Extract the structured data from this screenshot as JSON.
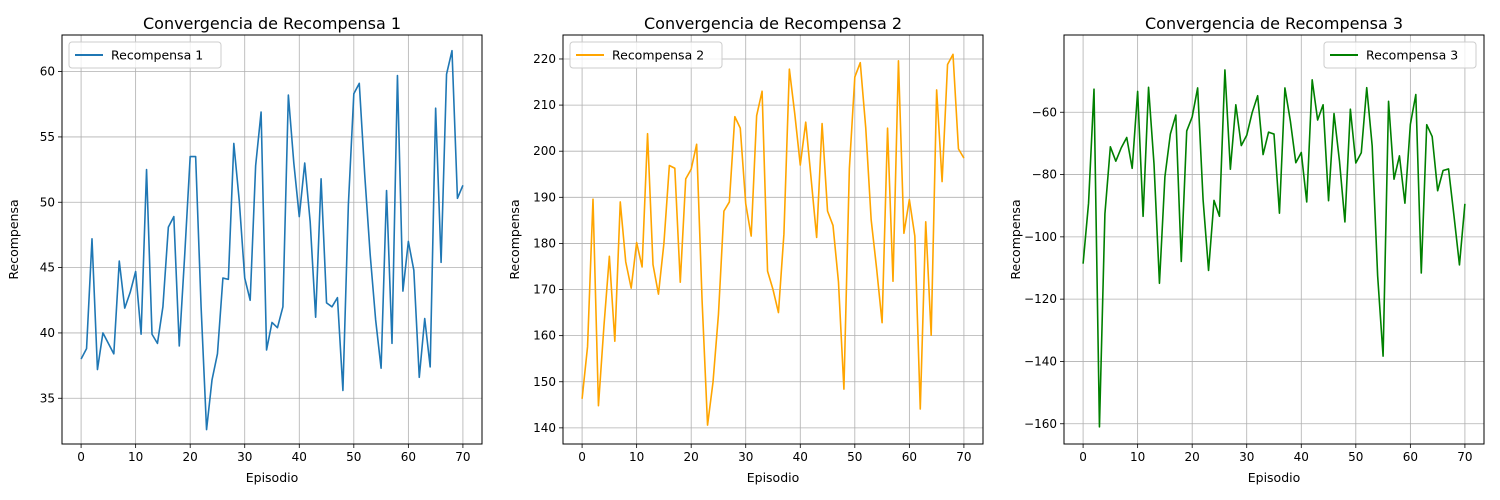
{
  "chart_data": [
    {
      "type": "line",
      "title": "Convergencia de Recompensa 1",
      "xlabel": "Episodio",
      "ylabel": "Recompensa",
      "xlim": [
        -3.5,
        73.5
      ],
      "ylim": [
        31.5,
        62.8
      ],
      "xticks": [
        0,
        10,
        20,
        30,
        40,
        50,
        60,
        70
      ],
      "yticks": [
        35,
        40,
        45,
        50,
        55,
        60
      ],
      "grid": true,
      "legend_position": "upper-left",
      "series": [
        {
          "name": "Recompensa 1",
          "color": "#1f77b4",
          "x": [
            0,
            1,
            2,
            3,
            4,
            5,
            6,
            7,
            8,
            9,
            10,
            11,
            12,
            13,
            14,
            15,
            16,
            17,
            18,
            19,
            20,
            21,
            22,
            23,
            24,
            25,
            26,
            27,
            28,
            29,
            30,
            31,
            32,
            33,
            34,
            35,
            36,
            37,
            38,
            39,
            40,
            41,
            42,
            43,
            44,
            45,
            46,
            47,
            48,
            49,
            50,
            51,
            52,
            53,
            54,
            55,
            56,
            57,
            58,
            59,
            60,
            61,
            62,
            63,
            64,
            65,
            66,
            67,
            68,
            69,
            70
          ],
          "values": [
            38.0,
            38.8,
            47.2,
            37.2,
            40.0,
            39.2,
            38.4,
            45.5,
            41.9,
            43.1,
            44.7,
            39.9,
            52.5,
            39.9,
            39.2,
            42.0,
            48.1,
            48.9,
            39.0,
            46.0,
            53.5,
            53.5,
            42.0,
            32.6,
            36.4,
            38.4,
            44.2,
            44.1,
            54.5,
            50.1,
            44.2,
            42.5,
            52.8,
            56.9,
            38.7,
            40.8,
            40.4,
            42.0,
            58.2,
            53.0,
            48.9,
            53.0,
            48.5,
            41.2,
            51.8,
            42.3,
            42.0,
            42.7,
            35.6,
            49.8,
            58.3,
            59.1,
            52.1,
            46.0,
            41.0,
            37.3,
            50.9,
            39.2,
            59.7,
            43.2,
            47.0,
            44.8,
            36.6,
            41.1,
            37.4,
            57.2,
            45.4,
            59.8,
            61.6,
            50.3,
            51.3
          ]
        }
      ]
    },
    {
      "type": "line",
      "title": "Convergencia de Recompensa 2",
      "xlabel": "Episodio",
      "ylabel": "Recompensa",
      "xlim": [
        -3.5,
        73.5
      ],
      "ylim": [
        136.5,
        225.2
      ],
      "xticks": [
        0,
        10,
        20,
        30,
        40,
        50,
        60,
        70
      ],
      "yticks": [
        140,
        150,
        160,
        170,
        180,
        190,
        200,
        210,
        220
      ],
      "grid": true,
      "legend_position": "upper-left",
      "series": [
        {
          "name": "Recompensa 2",
          "color": "#ffa500",
          "x": [
            0,
            1,
            2,
            3,
            4,
            5,
            6,
            7,
            8,
            9,
            10,
            11,
            12,
            13,
            14,
            15,
            16,
            17,
            18,
            19,
            20,
            21,
            22,
            23,
            24,
            25,
            26,
            27,
            28,
            29,
            30,
            31,
            32,
            33,
            34,
            35,
            36,
            37,
            38,
            39,
            40,
            41,
            42,
            43,
            44,
            45,
            46,
            47,
            48,
            49,
            50,
            51,
            52,
            53,
            54,
            55,
            56,
            57,
            58,
            59,
            60,
            61,
            62,
            63,
            64,
            65,
            66,
            67,
            68,
            69,
            70
          ],
          "values": [
            146.3,
            157.6,
            189.6,
            144.8,
            162.0,
            177.2,
            158.8,
            189.0,
            176.0,
            170.3,
            180.2,
            174.9,
            203.8,
            175.4,
            169.0,
            180.0,
            196.9,
            196.3,
            171.6,
            194.0,
            196.1,
            201.5,
            167.6,
            140.6,
            149.9,
            164.6,
            187.0,
            189.0,
            207.5,
            205.0,
            188.6,
            181.6,
            207.7,
            213.0,
            174.0,
            170.0,
            165.0,
            182.0,
            217.8,
            208.0,
            197.0,
            206.3,
            193.9,
            181.3,
            206.0,
            187.0,
            183.9,
            171.7,
            148.4,
            196.2,
            216.1,
            219.2,
            205.1,
            185.1,
            174.5,
            162.8,
            205.0,
            171.8,
            219.6,
            182.2,
            189.5,
            181.6,
            144.1,
            184.7,
            160.1,
            213.3,
            193.4,
            218.8,
            221.0,
            200.5,
            198.5
          ]
        }
      ]
    },
    {
      "type": "line",
      "title": "Convergencia de Recompensa 3",
      "xlabel": "Episodio",
      "ylabel": "Recompensa",
      "xlim": [
        -3.5,
        73.5
      ],
      "ylim": [
        -166.5,
        -35.2
      ],
      "xticks": [
        0,
        10,
        20,
        30,
        40,
        50,
        60,
        70
      ],
      "yticks": [
        -160,
        -140,
        -120,
        -100,
        -80,
        -60
      ],
      "grid": true,
      "legend_position": "upper-right",
      "series": [
        {
          "name": "Recompensa 3",
          "color": "#008000",
          "x": [
            0,
            1,
            2,
            3,
            4,
            5,
            6,
            7,
            8,
            9,
            10,
            11,
            12,
            13,
            14,
            15,
            16,
            17,
            18,
            19,
            20,
            21,
            22,
            23,
            24,
            25,
            26,
            27,
            28,
            29,
            30,
            31,
            32,
            33,
            34,
            35,
            36,
            37,
            38,
            39,
            40,
            41,
            42,
            43,
            44,
            45,
            46,
            47,
            48,
            49,
            50,
            51,
            52,
            53,
            54,
            55,
            56,
            57,
            58,
            59,
            60,
            61,
            62,
            63,
            64,
            65,
            66,
            67,
            68,
            69,
            70
          ],
          "values": [
            -108.6,
            -89.2,
            -52.6,
            -161.0,
            -92.6,
            -71.1,
            -75.7,
            -71.4,
            -68.1,
            -78.0,
            -53.3,
            -93.4,
            -52.0,
            -76.6,
            -114.9,
            -80.7,
            -67.0,
            -60.9,
            -107.9,
            -66.0,
            -61.5,
            -52.2,
            -88.1,
            -110.8,
            -88.3,
            -93.4,
            -46.4,
            -78.3,
            -57.6,
            -70.7,
            -67.4,
            -60.1,
            -54.7,
            -73.6,
            -66.4,
            -67.0,
            -92.4,
            -52.2,
            -62.8,
            -76.2,
            -72.9,
            -88.8,
            -49.6,
            -62.5,
            -57.6,
            -88.4,
            -60.4,
            -75.6,
            -95.2,
            -59.0,
            -76.3,
            -73.0,
            -52.1,
            -70.8,
            -112.5,
            -138.3,
            -56.5,
            -81.5,
            -74.0,
            -89.2,
            -63.9,
            -54.3,
            -111.6,
            -64.0,
            -67.8,
            -85.2,
            -78.7,
            -78.2,
            -93.3,
            -109.0,
            -89.4
          ]
        }
      ]
    }
  ]
}
